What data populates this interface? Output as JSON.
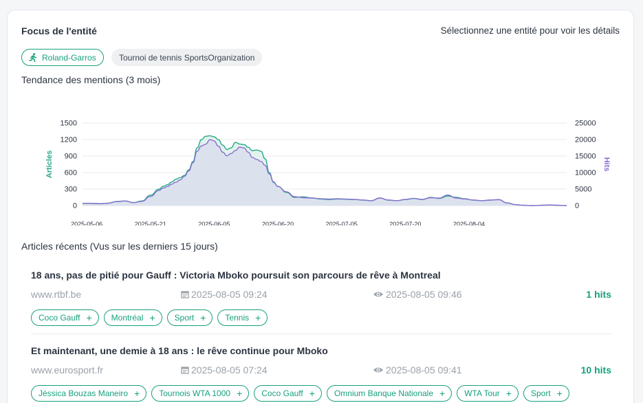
{
  "focus": {
    "title": "Focus de l'entité",
    "hint": "Sélectionnez une entité pour voir les détails",
    "entity_name": "Roland-Garros",
    "entity_type": "Tournoi de tennis SportsOrganization",
    "entity_icon": "running-person-icon"
  },
  "trend_title": "Tendance des mentions (3 mois)",
  "recent_title": "Articles récents (Vus sur les derniers 15 jours)",
  "colors": {
    "accent": "#16a07c",
    "articles": "#2aa889",
    "hits": "#8a6fd1",
    "fill": "#d9deec"
  },
  "chart_data": {
    "type": "line",
    "x": [
      "2025-05-06",
      "2025-05-21",
      "2025-06-05",
      "2025-06-20",
      "2025-07-05",
      "2025-07-20",
      "2025-08-04"
    ],
    "x_tick_labels": [
      "2025-05-06",
      "2025-05-21",
      "2025-06-05",
      "2025-06-20",
      "2025-07-05",
      "2025-07-20",
      "2025-08-04"
    ],
    "ylabel_left": "Articles",
    "ylabel_right": "Hits",
    "ylim_left": [
      0,
      1500
    ],
    "ylim_right": [
      0,
      25000
    ],
    "yticks_left": [
      0,
      300,
      600,
      900,
      1200,
      1500
    ],
    "yticks_right": [
      0,
      5000,
      10000,
      15000,
      20000,
      25000
    ],
    "series": [
      {
        "name": "Articles",
        "axis": "left",
        "values": [
          [
            0,
            40
          ],
          [
            2,
            40
          ],
          [
            4,
            35
          ],
          [
            6,
            45
          ],
          [
            8,
            75
          ],
          [
            10,
            85
          ],
          [
            12,
            55
          ],
          [
            14,
            85
          ],
          [
            16,
            190
          ],
          [
            18,
            300
          ],
          [
            19,
            350
          ],
          [
            20,
            380
          ],
          [
            21,
            430
          ],
          [
            22,
            480
          ],
          [
            23,
            510
          ],
          [
            24,
            550
          ],
          [
            25,
            650
          ],
          [
            26,
            800
          ],
          [
            27,
            1050
          ],
          [
            28,
            1200
          ],
          [
            29,
            1260
          ],
          [
            30,
            1270
          ],
          [
            31,
            1250
          ],
          [
            32,
            1200
          ],
          [
            33,
            1100
          ],
          [
            34,
            1020
          ],
          [
            35,
            1050
          ],
          [
            36,
            1150
          ],
          [
            37,
            1120
          ],
          [
            38,
            1110
          ],
          [
            39,
            1060
          ],
          [
            40,
            1000
          ],
          [
            41,
            1010
          ],
          [
            42,
            990
          ],
          [
            43,
            850
          ],
          [
            44,
            600
          ],
          [
            45,
            420
          ],
          [
            46,
            350
          ],
          [
            48,
            240
          ],
          [
            50,
            150
          ],
          [
            52,
            160
          ],
          [
            54,
            140
          ],
          [
            56,
            120
          ],
          [
            58,
            110
          ],
          [
            60,
            120
          ],
          [
            62,
            115
          ],
          [
            64,
            110
          ],
          [
            66,
            100
          ],
          [
            68,
            90
          ],
          [
            70,
            140
          ],
          [
            72,
            100
          ],
          [
            74,
            90
          ],
          [
            76,
            110
          ],
          [
            78,
            130
          ],
          [
            80,
            110
          ],
          [
            82,
            150
          ],
          [
            84,
            130
          ],
          [
            86,
            175
          ],
          [
            88,
            150
          ],
          [
            90,
            125
          ],
          [
            92,
            100
          ],
          [
            94,
            90
          ],
          [
            96,
            100
          ],
          [
            98,
            110
          ],
          [
            100,
            50
          ],
          [
            102,
            15
          ],
          [
            104,
            5
          ],
          [
            106,
            0
          ],
          [
            108,
            5
          ],
          [
            110,
            10
          ],
          [
            112,
            5
          ],
          [
            114,
            0
          ]
        ]
      },
      {
        "name": "Hits",
        "axis": "right",
        "values": [
          [
            0,
            700
          ],
          [
            2,
            700
          ],
          [
            4,
            600
          ],
          [
            6,
            700
          ],
          [
            8,
            1200
          ],
          [
            10,
            1400
          ],
          [
            12,
            900
          ],
          [
            14,
            1300
          ],
          [
            16,
            2800
          ],
          [
            18,
            4600
          ],
          [
            19,
            5300
          ],
          [
            20,
            5800
          ],
          [
            21,
            6500
          ],
          [
            22,
            7100
          ],
          [
            23,
            7800
          ],
          [
            24,
            8900
          ],
          [
            25,
            10500
          ],
          [
            26,
            13000
          ],
          [
            27,
            16500
          ],
          [
            28,
            18100
          ],
          [
            29,
            18600
          ],
          [
            30,
            20000
          ],
          [
            31,
            19600
          ],
          [
            32,
            18000
          ],
          [
            33,
            16200
          ],
          [
            34,
            15100
          ],
          [
            35,
            15800
          ],
          [
            36,
            16700
          ],
          [
            37,
            17700
          ],
          [
            38,
            17500
          ],
          [
            39,
            16200
          ],
          [
            40,
            14600
          ],
          [
            41,
            14000
          ],
          [
            42,
            13400
          ],
          [
            43,
            12200
          ],
          [
            44,
            9600
          ],
          [
            45,
            7200
          ],
          [
            46,
            5800
          ],
          [
            48,
            4200
          ],
          [
            50,
            2700
          ],
          [
            52,
            2400
          ],
          [
            54,
            2300
          ],
          [
            56,
            2100
          ],
          [
            58,
            2000
          ],
          [
            60,
            2100
          ],
          [
            62,
            2000
          ],
          [
            64,
            1900
          ],
          [
            66,
            1700
          ],
          [
            68,
            1500
          ],
          [
            70,
            2300
          ],
          [
            72,
            1700
          ],
          [
            74,
            1500
          ],
          [
            76,
            1900
          ],
          [
            78,
            2200
          ],
          [
            80,
            1900
          ],
          [
            82,
            2400
          ],
          [
            84,
            2300
          ],
          [
            86,
            3200
          ],
          [
            88,
            2300
          ],
          [
            90,
            2000
          ],
          [
            92,
            1700
          ],
          [
            94,
            1500
          ],
          [
            96,
            1700
          ],
          [
            98,
            1800
          ],
          [
            100,
            800
          ],
          [
            102,
            300
          ],
          [
            104,
            100
          ],
          [
            106,
            50
          ],
          [
            108,
            100
          ],
          [
            110,
            200
          ],
          [
            112,
            100
          ],
          [
            114,
            50
          ]
        ]
      }
    ],
    "legend": "none",
    "grid": true
  },
  "articles": [
    {
      "title": "18 ans, pas de pitié pour Gauff : Victoria Mboko poursuit son parcours de rêve à Montreal",
      "source": "www.rtbf.be",
      "published": "2025-08-05 09:24",
      "seen": "2025-08-05 09:46",
      "hits": "1 hits",
      "tags": [
        "Coco Gauff",
        "Montréal",
        "Sport",
        "Tennis"
      ]
    },
    {
      "title": "Et maintenant, une demie à 18 ans : le rêve continue pour Mboko",
      "source": "www.eurosport.fr",
      "published": "2025-08-05 07:24",
      "seen": "2025-08-05 09:41",
      "hits": "10 hits",
      "tags": [
        "Jéssica Bouzas Maneiro",
        "Tournois WTA 1000",
        "Coco Gauff",
        "Omnium Banque Nationale",
        "WTA Tour",
        "Sport"
      ]
    }
  ]
}
